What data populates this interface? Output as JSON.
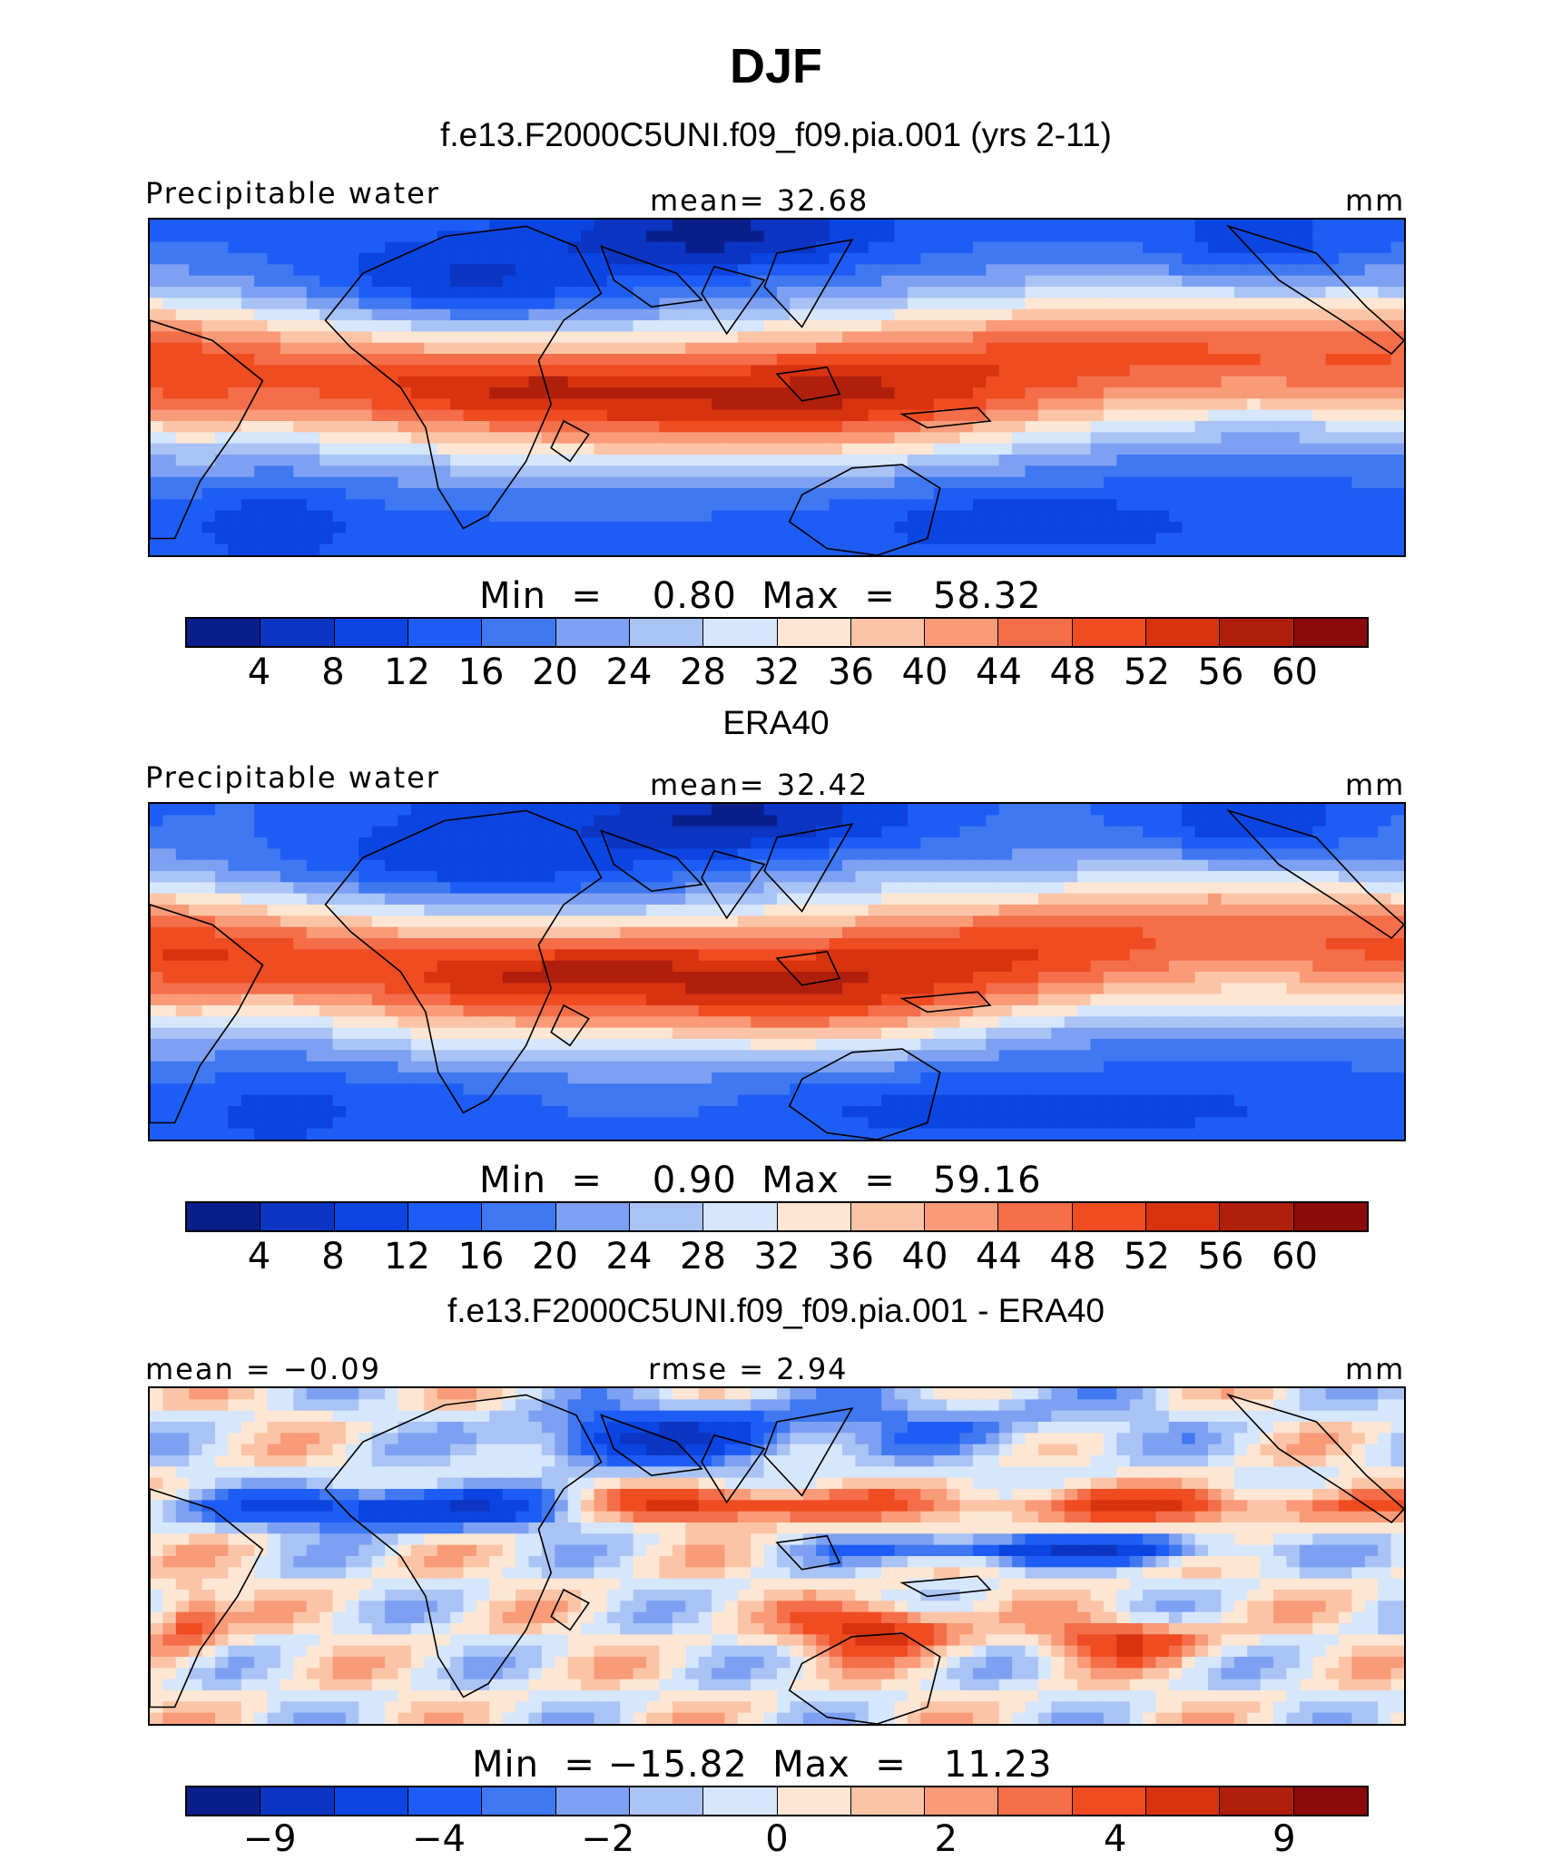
{
  "title": "DJF",
  "palette": [
    "#0a1f8c",
    "#0b35c2",
    "#0b44e0",
    "#1e5df5",
    "#3f78f0",
    "#7ea0f2",
    "#a9c3f5",
    "#d6e6fb",
    "#fde6d3",
    "#fcc4a6",
    "#f99b78",
    "#f46e4a",
    "#ef4c22",
    "#d8330f",
    "#b01f0c",
    "#8b0b0b"
  ],
  "land_color": "#d6e6fb",
  "panels": [
    {
      "subtitle": "f.e13.F2000C5UNI.f09_f09.pia.001 (yrs 2-11)",
      "left_label": "Precipitable water",
      "center_label": "mean=   32.68",
      "right_label": "mm",
      "minmax": "Min  =    0.80  Max  =   58.32",
      "colorbar_ticks": [
        "4",
        "8",
        "12",
        "16",
        "20",
        "24",
        "28",
        "32",
        "36",
        "40",
        "44",
        "48",
        "52",
        "56",
        "60"
      ],
      "kind": "field"
    },
    {
      "subtitle": "ERA40",
      "left_label": "Precipitable water",
      "center_label": "mean=   32.42",
      "right_label": "mm",
      "minmax": "Min  =    0.90  Max  =   59.16",
      "colorbar_ticks": [
        "4",
        "8",
        "12",
        "16",
        "20",
        "24",
        "28",
        "32",
        "36",
        "40",
        "44",
        "48",
        "52",
        "56",
        "60"
      ],
      "kind": "field"
    },
    {
      "subtitle": "f.e13.F2000C5UNI.f09_f09.pia.001 - ERA40",
      "left_label": "mean =   −0.09",
      "center_label": "rmse =    2.94",
      "right_label": "mm",
      "minmax": "Min  = −15.82  Max  =   11.23",
      "colorbar_ticks": [
        "−9",
        "",
        "−4",
        "",
        "−2",
        "",
        "0",
        "",
        "2",
        "",
        "4",
        "",
        "9"
      ],
      "kind": "diff"
    }
  ]
}
